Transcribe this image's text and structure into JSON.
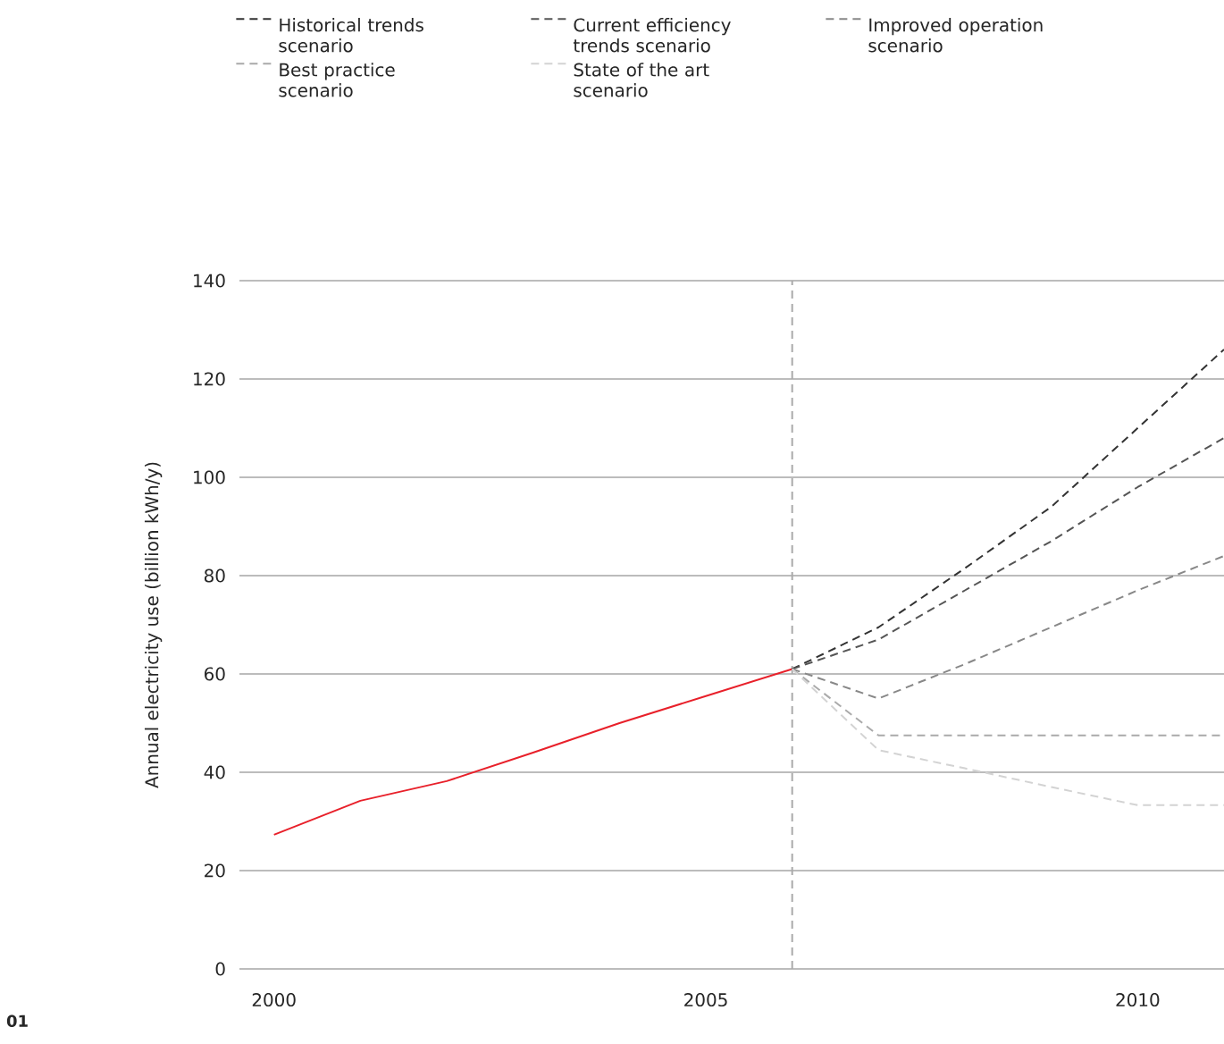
{
  "chart_data": {
    "type": "line",
    "ylabel": "Annual electricity use (billion kWh/y)",
    "xlim": [
      1999.6,
      2011
    ],
    "xticks": [
      2000,
      2005,
      2010
    ],
    "ylim": [
      0,
      140
    ],
    "yticks": [
      0,
      20,
      40,
      60,
      80,
      100,
      120,
      140
    ],
    "grid": "y",
    "legend": "top",
    "marker": "none",
    "series": [
      {
        "color": "#e8202a",
        "line_style": "solid",
        "x": [
          2000,
          2001,
          2002,
          2003,
          2004,
          2005,
          2006
        ],
        "values": [
          27.3,
          34.2,
          38.2,
          44,
          50,
          55.5,
          61
        ]
      },
      {
        "name": "Historical trends scenario",
        "color": "#333333",
        "line_style": "dashed",
        "x": [
          2006,
          2007,
          2008,
          2009,
          2011
        ],
        "values": [
          61,
          69.5,
          81.5,
          94,
          126
        ]
      },
      {
        "name": "Current efficiency trends scenario",
        "color": "#555555",
        "line_style": "dashed",
        "x": [
          2006,
          2007,
          2008,
          2009,
          2010,
          2011
        ],
        "values": [
          61,
          67,
          77,
          87,
          98,
          108
        ]
      },
      {
        "name": "Improved operation scenario",
        "color": "#888888",
        "line_style": "dashed",
        "x": [
          2006,
          2007,
          2008,
          2009,
          2010,
          2011
        ],
        "values": [
          61,
          55,
          62,
          69.5,
          77,
          84
        ]
      },
      {
        "name": "Best practice scenario",
        "color": "#aaaaaa",
        "line_style": "dashed",
        "x": [
          2006,
          2007,
          2011
        ],
        "values": [
          61,
          47.5,
          47.5
        ]
      },
      {
        "name": "State of the art scenario",
        "color": "#d3d3d3",
        "line_style": "dashed",
        "x": [
          2006,
          2007,
          2008,
          2009,
          2010,
          2011
        ],
        "values": [
          61,
          44.5,
          40.8,
          37,
          33.3,
          33.3
        ]
      }
    ],
    "ref_lines": [
      {
        "axis": "x",
        "value": 2006,
        "color": "#aaaaaa",
        "line_style": "dashed"
      }
    ],
    "annotations": [
      "01"
    ]
  }
}
